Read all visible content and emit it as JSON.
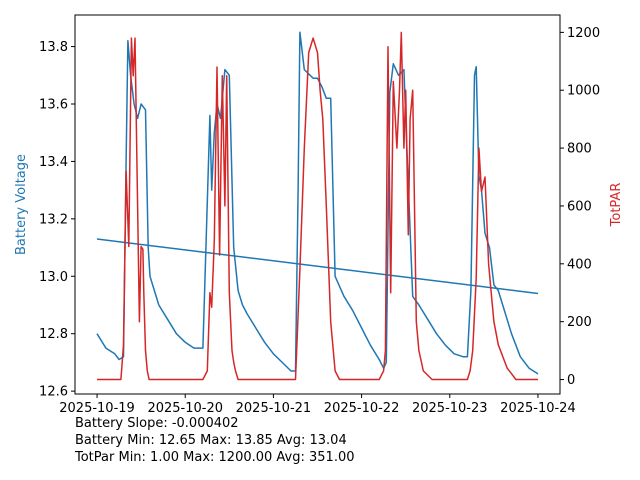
{
  "chart_data": {
    "type": "line",
    "x_ticks": [
      "2025-10-19",
      "2025-10-20",
      "2025-10-21",
      "2025-10-22",
      "2025-10-23",
      "2025-10-24"
    ],
    "x_range_days": [
      -0.25,
      5.25
    ],
    "left_axis": {
      "label": "Battery Voltage",
      "color": "#1f77b4",
      "ylim": [
        12.59,
        13.91
      ],
      "ticks": [
        "12.6",
        "12.8",
        "13.0",
        "13.2",
        "13.4",
        "13.6",
        "13.8"
      ],
      "tick_values": [
        12.6,
        12.8,
        13.0,
        13.2,
        13.4,
        13.6,
        13.8
      ]
    },
    "right_axis": {
      "label": "TotPAR",
      "color": "#d62728",
      "ylim": [
        -50,
        1260
      ],
      "ticks": [
        "0",
        "200",
        "400",
        "600",
        "800",
        "1000",
        "1200"
      ],
      "tick_values": [
        0,
        200,
        400,
        600,
        800,
        1000,
        1200
      ]
    },
    "series": [
      {
        "name": "Battery Voltage",
        "axis": "left",
        "color": "#1f77b4",
        "x": [
          0.0,
          0.1,
          0.2,
          0.25,
          0.3,
          0.33,
          0.35,
          0.38,
          0.42,
          0.46,
          0.5,
          0.55,
          0.58,
          0.6,
          0.65,
          0.7,
          0.8,
          0.9,
          1.0,
          1.1,
          1.2,
          1.28,
          1.3,
          1.33,
          1.36,
          1.4,
          1.45,
          1.5,
          1.55,
          1.6,
          1.65,
          1.7,
          1.8,
          1.9,
          2.0,
          2.1,
          2.2,
          2.25,
          2.28,
          2.3,
          2.35,
          2.45,
          2.5,
          2.55,
          2.6,
          2.65,
          2.7,
          2.8,
          2.9,
          3.0,
          3.1,
          3.2,
          3.25,
          3.28,
          3.32,
          3.36,
          3.42,
          3.48,
          3.52,
          3.58,
          3.65,
          3.75,
          3.85,
          3.95,
          4.05,
          4.15,
          4.2,
          4.24,
          4.28,
          4.3,
          4.33,
          4.36,
          4.4,
          4.45,
          4.5,
          4.55,
          4.6,
          4.7,
          4.8,
          4.9,
          5.0
        ],
        "values": [
          12.8,
          12.75,
          12.73,
          12.71,
          12.72,
          13.4,
          13.82,
          13.7,
          13.6,
          13.55,
          13.6,
          13.58,
          13.1,
          13.0,
          12.95,
          12.9,
          12.85,
          12.8,
          12.77,
          12.75,
          12.75,
          13.56,
          13.3,
          13.5,
          13.6,
          13.55,
          13.72,
          13.7,
          13.1,
          12.95,
          12.9,
          12.87,
          12.82,
          12.77,
          12.73,
          12.7,
          12.67,
          12.67,
          13.3,
          13.85,
          13.72,
          13.69,
          13.69,
          13.66,
          13.62,
          13.62,
          13.0,
          12.93,
          12.88,
          12.82,
          12.76,
          12.71,
          12.68,
          12.7,
          13.64,
          13.74,
          13.7,
          13.72,
          13.4,
          12.93,
          12.9,
          12.85,
          12.8,
          12.76,
          12.73,
          12.72,
          12.72,
          12.95,
          13.7,
          13.73,
          13.35,
          13.3,
          13.15,
          13.1,
          12.97,
          12.95,
          12.9,
          12.8,
          12.72,
          12.68,
          12.66
        ]
      },
      {
        "name": "Battery Trend",
        "axis": "left",
        "color": "#1f77b4",
        "x": [
          0.0,
          5.0
        ],
        "values": [
          13.13,
          12.94
        ]
      },
      {
        "name": "TotPAR",
        "axis": "right",
        "color": "#d62728",
        "x": [
          0.0,
          0.2,
          0.27,
          0.3,
          0.33,
          0.36,
          0.39,
          0.41,
          0.43,
          0.46,
          0.48,
          0.5,
          0.52,
          0.53,
          0.55,
          0.57,
          0.59,
          0.62,
          0.65,
          0.7,
          1.0,
          1.1,
          1.2,
          1.25,
          1.28,
          1.3,
          1.33,
          1.36,
          1.39,
          1.42,
          1.45,
          1.47,
          1.5,
          1.53,
          1.55,
          1.57,
          1.6,
          1.65,
          1.75,
          2.0,
          2.2,
          2.25,
          2.3,
          2.35,
          2.4,
          2.45,
          2.5,
          2.53,
          2.56,
          2.6,
          2.65,
          2.7,
          2.75,
          3.0,
          3.1,
          3.15,
          3.2,
          3.25,
          3.27,
          3.3,
          3.33,
          3.36,
          3.4,
          3.43,
          3.45,
          3.48,
          3.5,
          3.53,
          3.55,
          3.58,
          3.62,
          3.65,
          3.7,
          3.8,
          4.0,
          4.1,
          4.2,
          4.23,
          4.26,
          4.3,
          4.33,
          4.36,
          4.4,
          4.44,
          4.47,
          4.5,
          4.55,
          4.6,
          4.65,
          4.7,
          4.75,
          4.8,
          5.0
        ],
        "values": [
          0,
          0,
          0,
          120,
          720,
          460,
          1180,
          1050,
          1180,
          600,
          200,
          460,
          450,
          300,
          100,
          30,
          0,
          0,
          0,
          0,
          0,
          0,
          0,
          30,
          300,
          250,
          480,
          1080,
          430,
          1050,
          600,
          1050,
          300,
          100,
          60,
          30,
          0,
          0,
          0,
          0,
          0,
          0,
          380,
          800,
          1130,
          1180,
          1130,
          1000,
          900,
          600,
          200,
          30,
          0,
          0,
          0,
          0,
          0,
          30,
          100,
          1150,
          300,
          1030,
          800,
          1000,
          1200,
          800,
          1000,
          500,
          900,
          1000,
          200,
          100,
          30,
          0,
          0,
          0,
          0,
          30,
          100,
          350,
          800,
          650,
          700,
          400,
          300,
          200,
          120,
          80,
          40,
          20,
          0,
          0,
          0
        ]
      }
    ],
    "annotations": [
      "Battery Slope: -0.000402",
      "Battery Min: 12.65 Max: 13.85 Avg: 13.04",
      "TotPar Min: 1.00 Max: 1200.00 Avg: 351.00"
    ]
  }
}
